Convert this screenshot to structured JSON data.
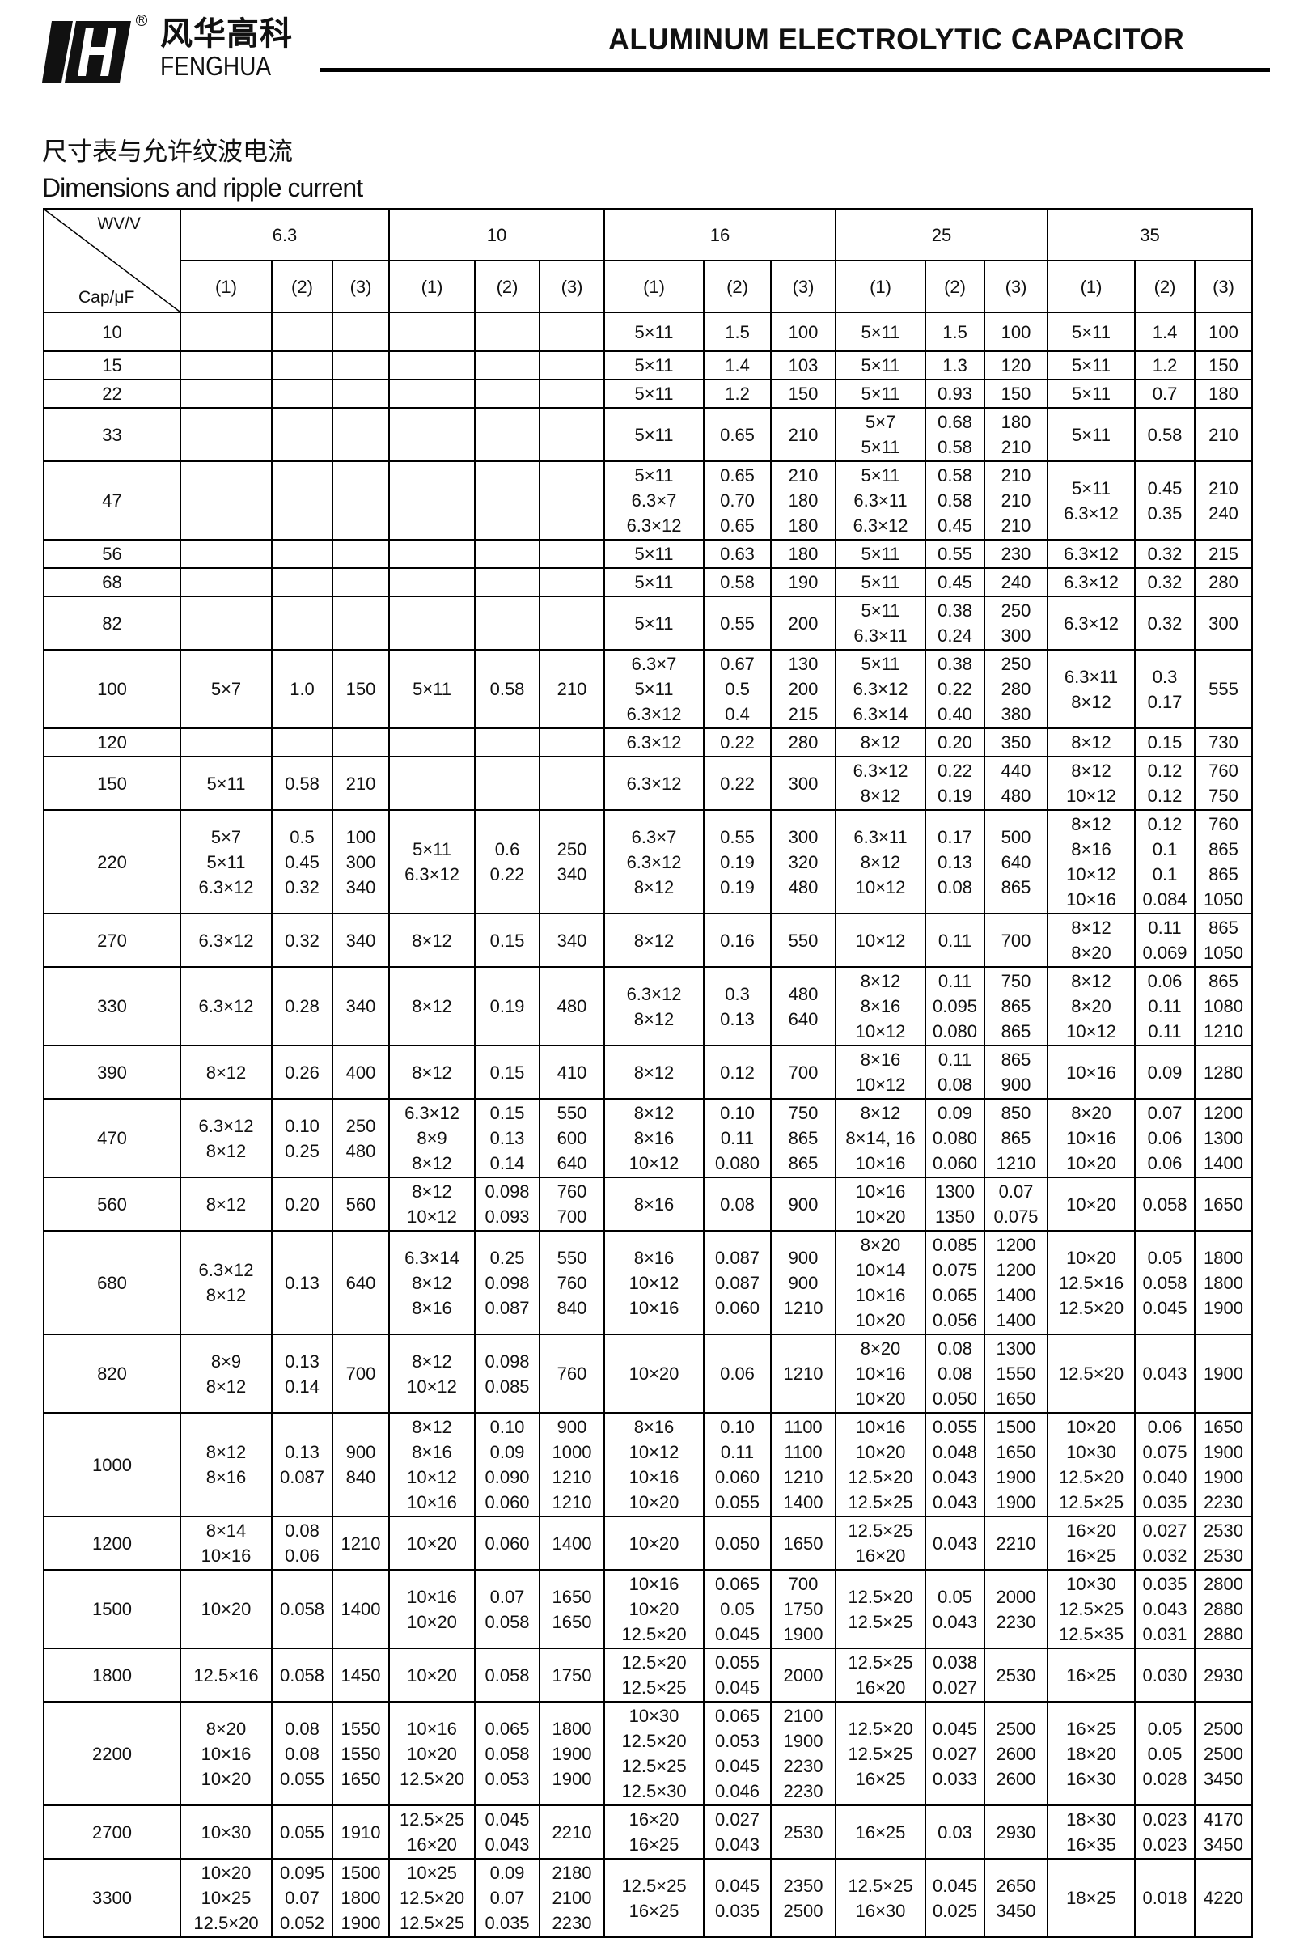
{
  "header": {
    "brand_cn": "风华高科",
    "brand_en": "FENGHUA",
    "registered_mark": "R",
    "title": "ALUMINUM ELECTROLYTIC CAPACITOR"
  },
  "section": {
    "title_cn": "尺寸表与允许纹波电流",
    "title_en": "Dimensions and ripple current"
  },
  "table": {
    "corner_top": "WV/V",
    "corner_bottom": "Cap/μF",
    "voltages": [
      "6.3",
      "10",
      "16",
      "25",
      "35"
    ],
    "subcolumns": [
      "(1)",
      "(2)",
      "(3)"
    ],
    "rows": [
      {
        "cap": "10",
        "cells": [
          "",
          "",
          "",
          "",
          "",
          "",
          "5×11",
          "1.5",
          "100",
          "5×11",
          "1.5",
          "100",
          "5×11",
          "1.4",
          "100"
        ]
      },
      {
        "cap": "15",
        "cells": [
          "",
          "",
          "",
          "",
          "",
          "",
          "5×11",
          "1.4",
          "103",
          "5×11",
          "1.3",
          "120",
          "5×11",
          "1.2",
          "150"
        ]
      },
      {
        "cap": "22",
        "cells": [
          "",
          "",
          "",
          "",
          "",
          "",
          "5×11",
          "1.2",
          "150",
          "5×11",
          "0.93",
          "150",
          "5×11",
          "0.7",
          "180"
        ]
      },
      {
        "cap": "33",
        "cells": [
          "",
          "",
          "",
          "",
          "",
          "",
          "5×11",
          "0.65",
          "210",
          "5×7\n5×11",
          "0.68\n0.58",
          "180\n210",
          "5×11",
          "0.58",
          "210"
        ]
      },
      {
        "cap": "47",
        "cells": [
          "",
          "",
          "",
          "",
          "",
          "",
          "5×11\n6.3×7\n6.3×12",
          "0.65\n0.70\n0.65",
          "210\n180\n180",
          "5×11\n6.3×11\n6.3×12",
          "0.58\n0.58\n0.45",
          "210\n210\n210",
          "5×11\n6.3×12",
          "0.45\n0.35",
          "210\n240"
        ]
      },
      {
        "cap": "56",
        "cells": [
          "",
          "",
          "",
          "",
          "",
          "",
          "5×11",
          "0.63",
          "180",
          "5×11",
          "0.55",
          "230",
          "6.3×12",
          "0.32",
          "215"
        ]
      },
      {
        "cap": "68",
        "cells": [
          "",
          "",
          "",
          "",
          "",
          "",
          "5×11",
          "0.58",
          "190",
          "5×11",
          "0.45",
          "240",
          "6.3×12",
          "0.32",
          "280"
        ]
      },
      {
        "cap": "82",
        "cells": [
          "",
          "",
          "",
          "",
          "",
          "",
          "5×11",
          "0.55",
          "200",
          "5×11\n6.3×11",
          "0.38\n0.24",
          "250\n300",
          "6.3×12",
          "0.32",
          "300"
        ]
      },
      {
        "cap": "100",
        "cells": [
          "5×7",
          "1.0",
          "150",
          "5×11",
          "0.58",
          "210",
          "6.3×7\n5×11\n6.3×12",
          "0.67\n0.5\n0.4",
          "130\n200\n215",
          "5×11\n6.3×12\n6.3×14",
          "0.38\n0.22\n0.40",
          "250\n280\n380",
          "6.3×11\n8×12",
          "0.3\n0.17",
          "555"
        ]
      },
      {
        "cap": "120",
        "cells": [
          "",
          "",
          "",
          "",
          "",
          "",
          "6.3×12",
          "0.22",
          "280",
          "8×12",
          "0.20",
          "350",
          "8×12",
          "0.15",
          "730"
        ]
      },
      {
        "cap": "150",
        "cells": [
          "5×11",
          "0.58",
          "210",
          "",
          "",
          "",
          "6.3×12",
          "0.22",
          "300",
          "6.3×12\n8×12",
          "0.22\n0.19",
          "440\n480",
          "8×12\n10×12",
          "0.12\n0.12",
          "760\n750"
        ]
      },
      {
        "cap": "220",
        "cells": [
          "5×7\n5×11\n6.3×12",
          "0.5\n0.45\n0.32",
          "100\n300\n340",
          "5×11\n6.3×12",
          "0.6\n0.22",
          "250\n340",
          "6.3×7\n6.3×12\n8×12",
          "0.55\n0.19\n0.19",
          "300\n320\n480",
          "6.3×11\n8×12\n10×12",
          "0.17\n0.13\n0.08",
          "500\n640\n865",
          "8×12\n8×16\n10×12\n10×16",
          "0.12\n0.1\n0.1\n0.084",
          "760\n865\n865\n1050"
        ]
      },
      {
        "cap": "270",
        "cells": [
          "6.3×12",
          "0.32",
          "340",
          "8×12",
          "0.15",
          "340",
          "8×12",
          "0.16",
          "550",
          "10×12",
          "0.11",
          "700",
          "8×12\n8×20",
          "0.11\n0.069",
          "865\n1050"
        ]
      },
      {
        "cap": "330",
        "cells": [
          "6.3×12",
          "0.28",
          "340",
          "8×12",
          "0.19",
          "480",
          "6.3×12\n8×12",
          "0.3\n0.13",
          "480\n640",
          "8×12\n8×16\n10×12",
          "0.11\n0.095\n0.080",
          "750\n865\n865",
          "8×12\n8×20\n10×12",
          "0.06\n0.11\n0.11",
          "865\n1080\n1210"
        ]
      },
      {
        "cap": "390",
        "cells": [
          "8×12",
          "0.26",
          "400",
          "8×12",
          "0.15",
          "410",
          "8×12",
          "0.12",
          "700",
          "8×16\n10×12",
          "0.11\n0.08",
          "865\n900",
          "10×16",
          "0.09",
          "1280"
        ]
      },
      {
        "cap": "470",
        "cells": [
          "6.3×12\n8×12",
          "0.10\n0.25",
          "250\n480",
          "6.3×12\n8×9\n8×12",
          "0.15\n0.13\n0.14",
          "550\n600\n640",
          "8×12\n8×16\n10×12",
          "0.10\n0.11\n0.080",
          "750\n865\n865",
          "8×12\n8×14, 16\n10×16",
          "0.09\n0.080\n0.060",
          "850\n865\n1210",
          "8×20\n10×16\n10×20",
          "0.07\n0.06\n0.06",
          "1200\n1300\n1400"
        ]
      },
      {
        "cap": "560",
        "cells": [
          "8×12",
          "0.20",
          "560",
          "8×12\n10×12",
          "0.098\n0.093",
          "760\n700",
          "8×16",
          "0.08",
          "900",
          "10×16\n10×20",
          "1300\n1350",
          "0.07\n0.075",
          "10×20",
          "0.058",
          "1650"
        ]
      },
      {
        "cap": "680",
        "cells": [
          "6.3×12\n8×12",
          "0.13",
          "640",
          "6.3×14\n8×12\n8×16",
          "0.25\n0.098\n0.087",
          "550\n760\n840",
          "8×16\n10×12\n10×16",
          "0.087\n0.087\n0.060",
          "900\n900\n1210",
          "8×20\n10×14\n10×16\n10×20",
          "0.085\n0.075\n0.065\n0.056",
          "1200\n1200\n1400\n1400",
          "10×20\n12.5×16\n12.5×20",
          "0.05\n0.058\n0.045",
          "1800\n1800\n1900"
        ]
      },
      {
        "cap": "820",
        "cells": [
          "8×9\n8×12",
          "0.13\n0.14",
          "700",
          "8×12\n10×12",
          "0.098\n0.085",
          "760",
          "10×20",
          "0.06",
          "1210",
          "8×20\n10×16\n10×20",
          "0.08\n0.08\n0.050",
          "1300\n1550\n1650",
          "12.5×20",
          "0.043",
          "1900"
        ]
      },
      {
        "cap": "1000",
        "cells": [
          "8×12\n8×16",
          "0.13\n0.087",
          "900\n840",
          "8×12\n8×16\n10×12\n10×16",
          "0.10\n0.09\n0.090\n0.060",
          "900\n1000\n1210\n1210",
          "8×16\n10×12\n10×16\n10×20",
          "0.10\n0.11\n0.060\n0.055",
          "1100\n1100\n1210\n1400",
          "10×16\n10×20\n12.5×20\n12.5×25",
          "0.055\n0.048\n0.043\n0.043",
          "1500\n1650\n1900\n1900",
          "10×20\n10×30\n12.5×20\n12.5×25",
          "0.06\n0.075\n0.040\n0.035",
          "1650\n1900\n1900\n2230"
        ]
      },
      {
        "cap": "1200",
        "cells": [
          "8×14\n10×16",
          "0.08\n0.06",
          "1210",
          "10×20",
          "0.060",
          "1400",
          "10×20",
          "0.050",
          "1650",
          "12.5×25\n16×20",
          "0.043",
          "2210",
          "16×20\n16×25",
          "0.027\n0.032",
          "2530\n2530"
        ]
      },
      {
        "cap": "1500",
        "cells": [
          "10×20",
          "0.058",
          "1400",
          "10×16\n10×20",
          "0.07\n0.058",
          "1650\n1650",
          "10×16\n10×20\n12.5×20",
          "0.065\n0.05\n0.045",
          "700\n1750\n1900",
          "12.5×20\n12.5×25",
          "0.05\n0.043",
          "2000\n2230",
          "10×30\n12.5×25\n12.5×35",
          "0.035\n0.043\n0.031",
          "2800\n2880\n2880"
        ]
      },
      {
        "cap": "1800",
        "cells": [
          "12.5×16",
          "0.058",
          "1450",
          "10×20",
          "0.058",
          "1750",
          "12.5×20\n12.5×25",
          "0.055\n0.045",
          "2000",
          "12.5×25\n16×20",
          "0.038\n0.027",
          "2530",
          "16×25",
          "0.030",
          "2930"
        ]
      },
      {
        "cap": "2200",
        "cells": [
          "8×20\n10×16\n10×20",
          "0.08\n0.08\n0.055",
          "1550\n1550\n1650",
          "10×16\n10×20\n12.5×20",
          "0.065\n0.058\n0.053",
          "1800\n1900\n1900",
          "10×30\n12.5×20\n12.5×25\n12.5×30",
          "0.065\n0.053\n0.045\n0.046",
          "2100\n1900\n2230\n2230",
          "12.5×20\n12.5×25\n16×25",
          "0.045\n0.027\n0.033",
          "2500\n2600\n2600",
          "16×25\n18×20\n16×30",
          "0.05\n0.05\n0.028",
          "2500\n2500\n3450"
        ]
      },
      {
        "cap": "2700",
        "cells": [
          "10×30",
          "0.055",
          "1910",
          "12.5×25\n16×20",
          "0.045\n0.043",
          "2210",
          "16×20\n16×25",
          "0.027\n0.043",
          "2530",
          "16×25",
          "0.03",
          "2930",
          "18×30\n16×35",
          "0.023\n0.023",
          "4170\n3450"
        ]
      },
      {
        "cap": "3300",
        "cells": [
          "10×20\n10×25\n12.5×20",
          "0.095\n0.07\n0.052",
          "1500\n1800\n1900",
          "10×25\n12.5×20\n12.5×25",
          "0.09\n0.07\n0.035",
          "2180\n2100\n2230",
          "12.5×25\n16×25",
          "0.045\n0.035",
          "2350\n2500",
          "12.5×25\n16×30",
          "0.045\n0.025",
          "2650\n3450",
          "18×25",
          "0.018",
          "4220"
        ]
      }
    ]
  }
}
